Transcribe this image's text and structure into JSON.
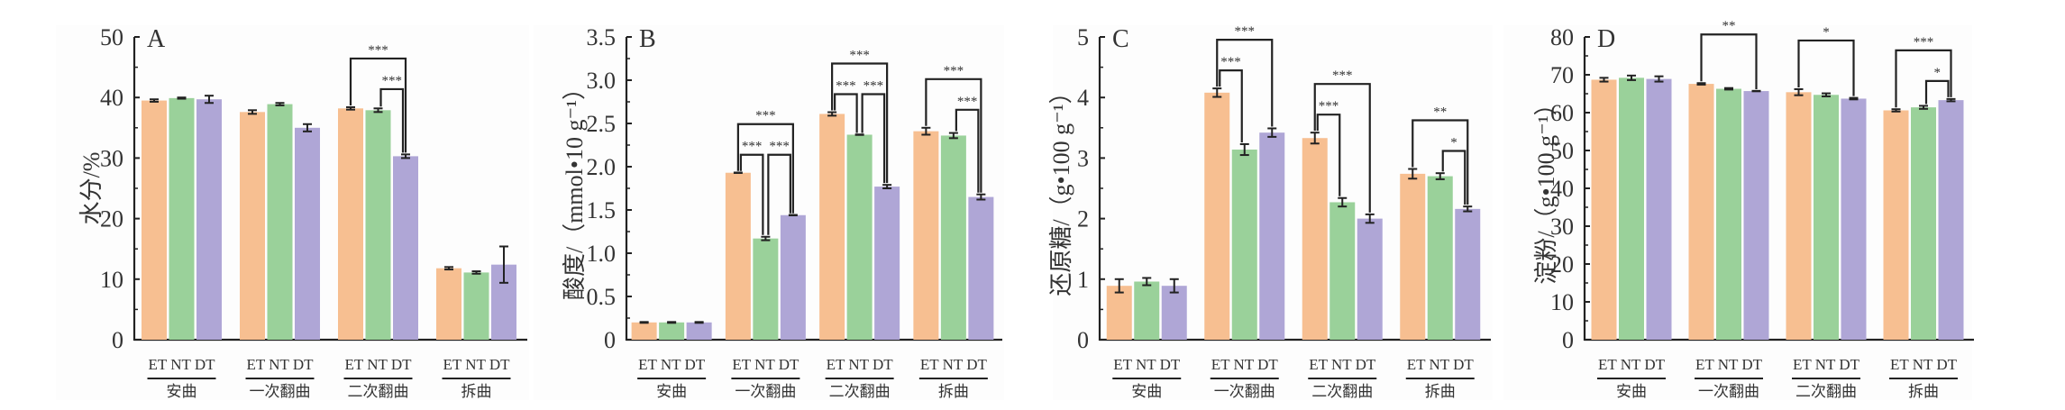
{
  "colors": {
    "ET": "#f7bf91",
    "NT": "#9ad19a",
    "DT": "#afa6d6",
    "axis": "#222222",
    "panel_bg": "#fdfdfd"
  },
  "groups": [
    "安曲",
    "一次翻曲",
    "二次翻曲",
    "拆曲"
  ],
  "treatments": [
    "ET",
    "NT",
    "DT"
  ],
  "chart_data": [
    {
      "type": "bar",
      "panel": "A",
      "ylabel": "水分/%",
      "ylim": [
        0,
        50
      ],
      "yticks": [
        0,
        10,
        20,
        30,
        40,
        50
      ],
      "ytick_labels": [
        "0",
        "10",
        "20",
        "30",
        "40",
        "50"
      ],
      "categories": [
        "安曲",
        "一次翻曲",
        "二次翻曲",
        "拆曲"
      ],
      "series": [
        {
          "name": "ET",
          "values": [
            39.5,
            37.6,
            38.2,
            11.8
          ],
          "errors": [
            0.2,
            0.3,
            0.2,
            0.2
          ]
        },
        {
          "name": "NT",
          "values": [
            39.9,
            38.9,
            37.9,
            11.1
          ],
          "errors": [
            0.1,
            0.2,
            0.3,
            0.2
          ]
        },
        {
          "name": "DT",
          "values": [
            39.7,
            35.0,
            30.3,
            12.4
          ],
          "errors": [
            0.6,
            0.6,
            0.3,
            3.0
          ]
        }
      ],
      "significance": [
        {
          "group": 2,
          "from": "ET",
          "to": "DT",
          "label": "***",
          "level": 0
        },
        {
          "group": 2,
          "from": "NT",
          "to": "DT",
          "label": "***",
          "level": 1
        }
      ]
    },
    {
      "type": "bar",
      "panel": "B",
      "ylabel": "酸度/（mmol•10 g⁻¹）",
      "ylim": [
        0,
        3.5
      ],
      "yticks": [
        0,
        0.5,
        1.0,
        1.5,
        2.0,
        2.5,
        3.0,
        3.5
      ],
      "ytick_labels": [
        "0",
        "0.5",
        "1.0",
        "1.5",
        "2.0",
        "2.5",
        "3.0",
        "3.5"
      ],
      "categories": [
        "安曲",
        "一次翻曲",
        "二次翻曲",
        "拆曲"
      ],
      "series": [
        {
          "name": "ET",
          "values": [
            0.2,
            1.93,
            2.61,
            2.41
          ],
          "errors": [
            0.005,
            0.0,
            0.02,
            0.04
          ]
        },
        {
          "name": "NT",
          "values": [
            0.2,
            1.17,
            2.37,
            2.36
          ],
          "errors": [
            0.005,
            0.02,
            0.0,
            0.03
          ]
        },
        {
          "name": "DT",
          "values": [
            0.2,
            1.44,
            1.77,
            1.65
          ],
          "errors": [
            0.005,
            0.0,
            0.02,
            0.03
          ]
        }
      ],
      "significance": [
        {
          "group": 1,
          "from": "ET",
          "to": "DT",
          "label": "***",
          "level": 0
        },
        {
          "group": 1,
          "from": "ET",
          "to": "NT",
          "label": "***",
          "level": 1
        },
        {
          "group": 1,
          "from": "NT",
          "to": "DT",
          "label": "***",
          "level": 1
        },
        {
          "group": 2,
          "from": "ET",
          "to": "DT",
          "label": "***",
          "level": 0
        },
        {
          "group": 2,
          "from": "ET",
          "to": "NT",
          "label": "***",
          "level": 1
        },
        {
          "group": 2,
          "from": "NT",
          "to": "DT",
          "label": "***",
          "level": 1
        },
        {
          "group": 3,
          "from": "ET",
          "to": "DT",
          "label": "***",
          "level": 0
        },
        {
          "group": 3,
          "from": "NT",
          "to": "DT",
          "label": "***",
          "level": 1
        }
      ]
    },
    {
      "type": "bar",
      "panel": "C",
      "ylabel": "还原糖/（g•100 g⁻¹）",
      "ylim": [
        0,
        5
      ],
      "yticks": [
        0,
        1,
        2,
        3,
        4,
        5
      ],
      "ytick_labels": [
        "0",
        "1",
        "2",
        "3",
        "4",
        "5"
      ],
      "categories": [
        "安曲",
        "一次翻曲",
        "二次翻曲",
        "拆曲"
      ],
      "series": [
        {
          "name": "ET",
          "values": [
            0.89,
            4.08,
            3.33,
            2.74
          ],
          "errors": [
            0.11,
            0.07,
            0.09,
            0.08
          ]
        },
        {
          "name": "NT",
          "values": [
            0.96,
            3.14,
            2.27,
            2.7
          ],
          "errors": [
            0.06,
            0.09,
            0.07,
            0.05
          ]
        },
        {
          "name": "DT",
          "values": [
            0.89,
            3.42,
            2.0,
            2.16
          ],
          "errors": [
            0.11,
            0.07,
            0.07,
            0.04
          ]
        }
      ],
      "significance": [
        {
          "group": 1,
          "from": "ET",
          "to": "DT",
          "label": "***",
          "level": 0
        },
        {
          "group": 1,
          "from": "ET",
          "to": "NT",
          "label": "***",
          "level": 1
        },
        {
          "group": 2,
          "from": "ET",
          "to": "DT",
          "label": "***",
          "level": 0
        },
        {
          "group": 2,
          "from": "ET",
          "to": "NT",
          "label": "***",
          "level": 1
        },
        {
          "group": 3,
          "from": "ET",
          "to": "DT",
          "label": "**",
          "level": 0
        },
        {
          "group": 3,
          "from": "NT",
          "to": "DT",
          "label": "*",
          "level": 1
        }
      ]
    },
    {
      "type": "bar",
      "panel": "D",
      "ylabel": "淀粉/（g•100 g⁻¹）",
      "ylim": [
        0,
        80
      ],
      "yticks": [
        0,
        10,
        20,
        30,
        40,
        50,
        60,
        70,
        80
      ],
      "ytick_labels": [
        "0",
        "10",
        "20",
        "30",
        "40",
        "50",
        "60",
        "70",
        "80"
      ],
      "categories": [
        "安曲",
        "一次翻曲",
        "二次翻曲",
        "拆曲"
      ],
      "series": [
        {
          "name": "ET",
          "values": [
            68.7,
            67.6,
            65.4,
            60.6
          ],
          "errors": [
            0.5,
            0.2,
            0.8,
            0.3
          ]
        },
        {
          "name": "NT",
          "values": [
            69.2,
            66.3,
            64.7,
            61.4
          ],
          "errors": [
            0.6,
            0.2,
            0.4,
            0.4
          ]
        },
        {
          "name": "DT",
          "values": [
            68.9,
            65.7,
            63.7,
            63.3
          ],
          "errors": [
            0.7,
            0.0,
            0.2,
            0.3
          ]
        }
      ],
      "significance": [
        {
          "group": 1,
          "from": "ET",
          "to": "DT",
          "label": "**",
          "level": 0
        },
        {
          "group": 2,
          "from": "ET",
          "to": "DT",
          "label": "*",
          "level": 0
        },
        {
          "group": 3,
          "from": "ET",
          "to": "DT",
          "label": "***",
          "level": 0
        },
        {
          "group": 3,
          "from": "NT",
          "to": "DT",
          "label": "*",
          "level": 1
        }
      ]
    }
  ]
}
